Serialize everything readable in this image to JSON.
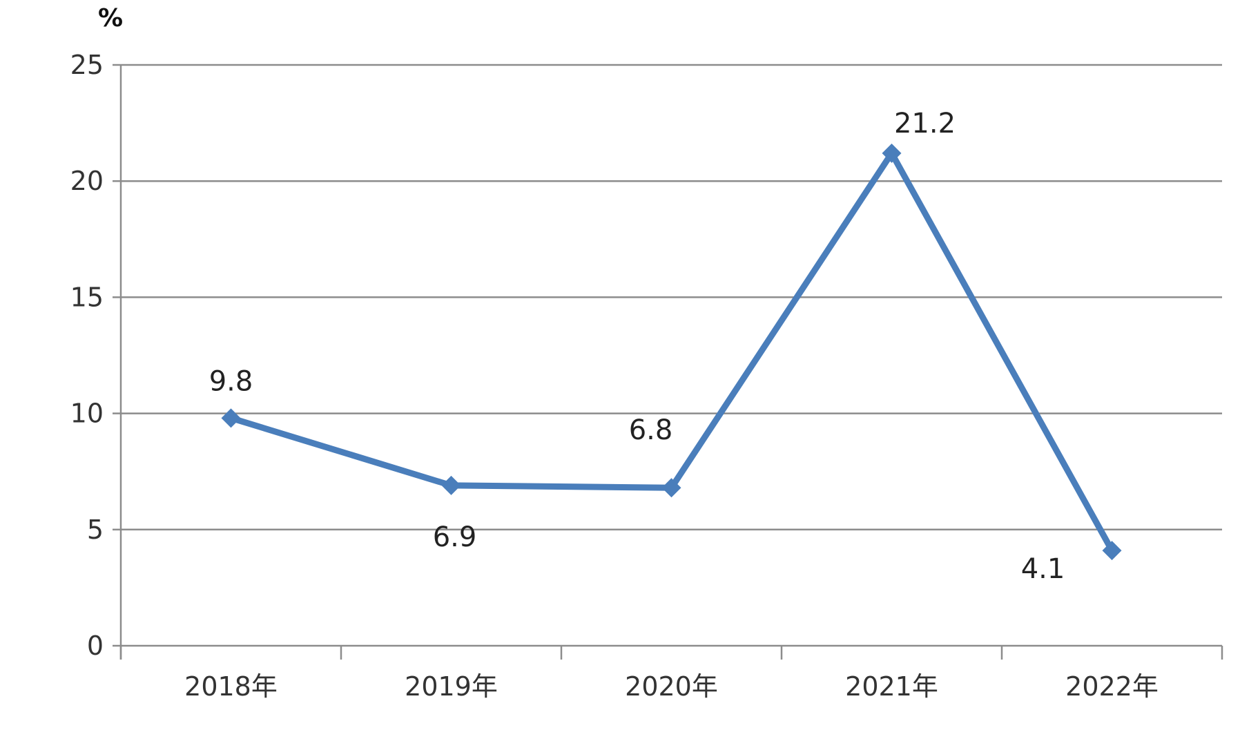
{
  "chart_data": {
    "type": "line",
    "title": "",
    "xlabel": "",
    "ylabel": "%",
    "categories": [
      "2018年",
      "2019年",
      "2020年",
      "2021年",
      "2022年"
    ],
    "series": [
      {
        "values": [
          9.8,
          6.9,
          6.8,
          21.2,
          4.1
        ],
        "data_labels": [
          "9.8",
          "6.9",
          "6.8",
          "21.2",
          "4.1"
        ],
        "color": "#4A7EBB",
        "marker": "diamond"
      }
    ],
    "ylim": [
      0,
      25
    ],
    "yticks": [
      0,
      5,
      10,
      15,
      20,
      25
    ],
    "grid": true,
    "legend": "none"
  }
}
